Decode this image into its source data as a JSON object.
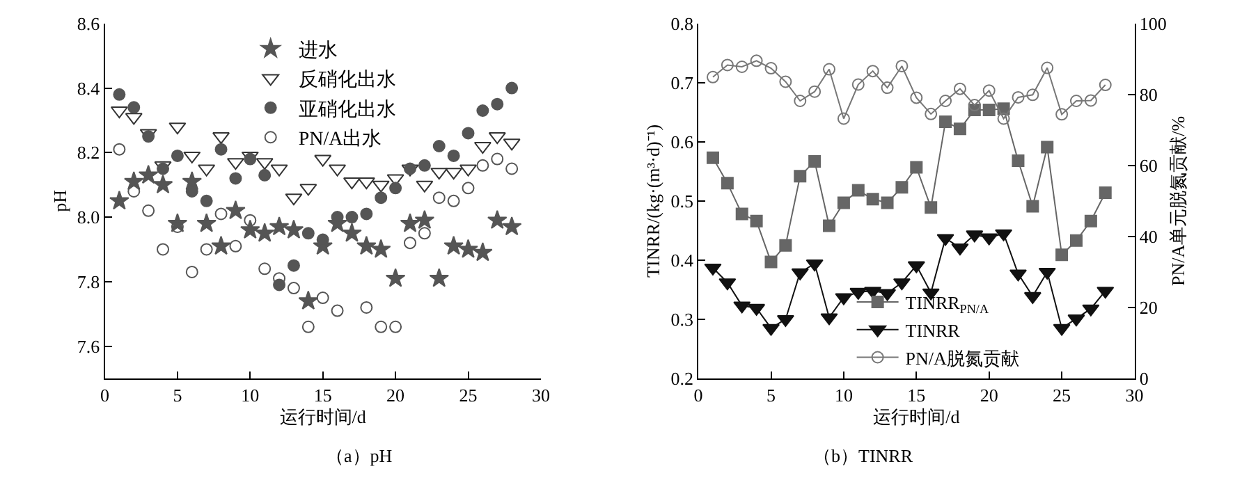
{
  "chart_data": [
    {
      "type": "scatter",
      "xlabel": "运行时间/d",
      "ylabel": "pH",
      "annotations": [
        "（a）pH"
      ],
      "x": [
        1,
        2,
        3,
        4,
        5,
        6,
        7,
        8,
        9,
        10,
        11,
        12,
        13,
        14,
        15,
        16,
        17,
        18,
        19,
        20,
        21,
        22,
        23,
        24,
        25,
        26,
        27,
        28
      ],
      "xlim": [
        0,
        30
      ],
      "xticks": [
        0,
        5,
        10,
        15,
        20,
        25,
        30
      ],
      "ylim": [
        7.5,
        8.6
      ],
      "yticks": [
        7.6,
        7.8,
        {
          "value": 8,
          "label": "8.0"
        },
        8.2,
        8.4,
        8.6
      ],
      "legend": "top",
      "series": [
        {
          "name": "进水",
          "color": "#555555",
          "marker": "star",
          "values": [
            8.05,
            8.11,
            8.13,
            8.1,
            7.98,
            8.11,
            7.98,
            7.91,
            8.02,
            7.96,
            7.95,
            7.97,
            7.96,
            7.74,
            7.91,
            7.98,
            7.95,
            7.91,
            7.9,
            7.81,
            7.98,
            7.99,
            7.81,
            7.91,
            7.9,
            7.89,
            7.99,
            7.97
          ]
        },
        {
          "name": "反硝化出水",
          "color": "#333333",
          "marker": "triangle",
          "values": [
            8.33,
            8.31,
            8.26,
            8.16,
            8.28,
            8.19,
            8.15,
            8.25,
            8.17,
            8.19,
            8.17,
            8.15,
            8.06,
            8.09,
            8.18,
            8.15,
            8.11,
            8.11,
            8.1,
            8.12,
            8.15,
            8.1,
            8.14,
            8.14,
            8.15,
            8.22,
            8.25,
            8.23
          ]
        },
        {
          "name": "亚硝化出水",
          "color": "#555555",
          "marker": "circle",
          "values": [
            8.38,
            8.34,
            8.25,
            8.15,
            8.19,
            8.08,
            8.05,
            8.21,
            8.12,
            8.18,
            8.13,
            7.79,
            7.85,
            7.95,
            7.93,
            8.0,
            8.0,
            8.01,
            8.06,
            8.09,
            8.15,
            8.16,
            8.22,
            8.19,
            8.26,
            8.33,
            8.35,
            8.4
          ]
        },
        {
          "name": "PN/A出水",
          "color": "#555555",
          "marker": "circle",
          "values": [
            8.21,
            8.08,
            8.02,
            7.9,
            7.97,
            7.83,
            7.9,
            8.01,
            7.91,
            7.99,
            7.84,
            7.81,
            7.78,
            7.66,
            7.75,
            7.71,
            null,
            7.72,
            7.66,
            7.66,
            7.92,
            7.95,
            8.06,
            8.05,
            8.09,
            8.16,
            8.18,
            8.15
          ]
        }
      ]
    },
    {
      "type": "line",
      "xlabel": "运行时间/d",
      "ylabel": "TINRR/(kg·(m³·d)⁻¹)",
      "y2label": "PN/A单元脱氮贡献/%",
      "annotations": [
        "（b）TINRR"
      ],
      "x": [
        1,
        2,
        3,
        4,
        5,
        6,
        7,
        8,
        9,
        10,
        11,
        12,
        13,
        14,
        15,
        16,
        17,
        18,
        19,
        20,
        21,
        22,
        23,
        24,
        25,
        26,
        27,
        28
      ],
      "xlim": [
        0,
        30
      ],
      "xticks": [
        0,
        5,
        10,
        15,
        20,
        25,
        30
      ],
      "ylim": [
        0.2,
        0.8
      ],
      "yticks": [
        0.2,
        0.3,
        0.4,
        0.5,
        0.6,
        0.7,
        0.8
      ],
      "y2lim": [
        0,
        100
      ],
      "y2ticks": [
        0,
        20,
        40,
        60,
        80,
        100
      ],
      "legend": "bottom",
      "line_style": "solid",
      "series": [
        {
          "name": "TINRR$_{PN/A}$",
          "color": "#666666",
          "marker": "square",
          "values": [
            0.573,
            0.53,
            0.478,
            0.466,
            0.397,
            0.425,
            0.542,
            0.567,
            0.458,
            0.497,
            0.518,
            0.503,
            0.497,
            0.523,
            0.557,
            0.489,
            0.634,
            0.622,
            0.654,
            0.654,
            0.656,
            0.568,
            0.491,
            0.591,
            0.409,
            0.433,
            0.466,
            0.514
          ]
        },
        {
          "name": "TINRR",
          "color": "#111111",
          "marker": "triangle",
          "values": [
            0.387,
            0.362,
            0.323,
            0.319,
            0.285,
            0.3,
            0.379,
            0.394,
            0.303,
            0.337,
            0.346,
            0.348,
            0.344,
            0.362,
            0.391,
            0.345,
            0.437,
            0.421,
            0.443,
            0.438,
            0.445,
            0.377,
            0.339,
            0.38,
            0.285,
            0.301,
            0.318,
            0.348
          ]
        },
        {
          "name": "PN/A脱氮贡献",
          "color": "#777777",
          "marker": "circle",
          "axis": "y2",
          "values": [
            84.9,
            88.3,
            87.8,
            89.5,
            87.4,
            83.6,
            78.2,
            80.8,
            87.1,
            73.2,
            82.8,
            86.6,
            81.9,
            88.0,
            79.1,
            74.5,
            78.2,
            81.6,
            77.0,
            81.1,
            73.2,
            79.2,
            79.9,
            87.5,
            74.4,
            78.2,
            78.3,
            82.7
          ]
        }
      ]
    }
  ]
}
